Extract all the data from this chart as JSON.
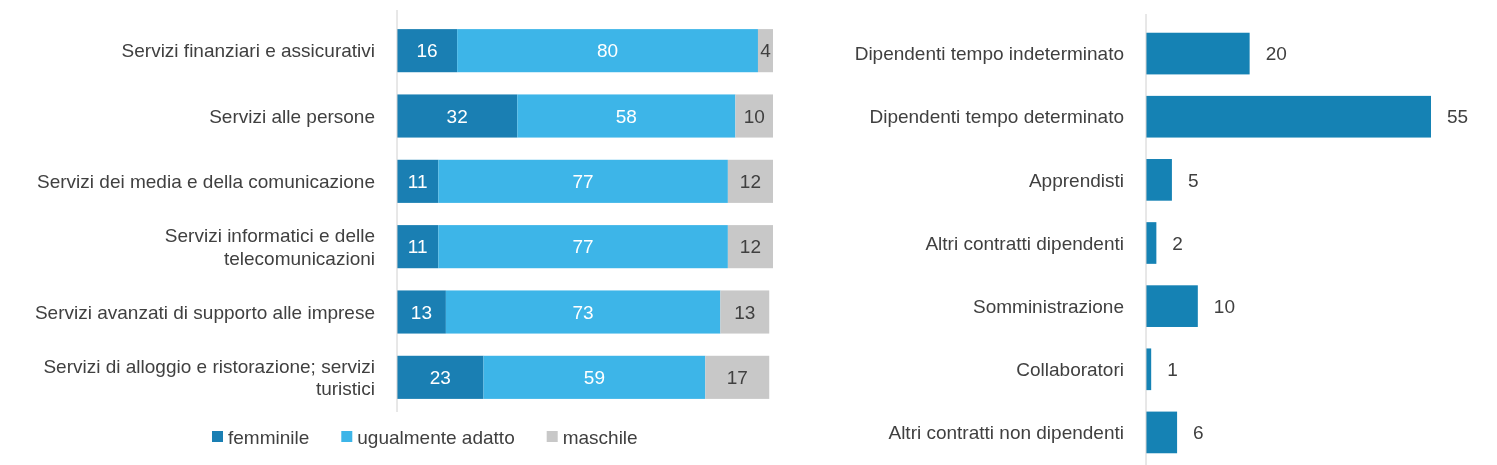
{
  "chart_data": [
    {
      "type": "bar",
      "orientation": "horizontal",
      "stacked": true,
      "data_labels": true,
      "legend": "bottom",
      "categories": [
        "Servizi finanziari e assicurativi",
        "Servizi alle persone",
        "Servizi dei media e della comunicazione",
        "Servizi informatici e delle telecomunicazioni",
        "Servizi avanzati di supporto alle imprese",
        "Servizi di alloggio e ristorazione; servizi turistici"
      ],
      "series": [
        {
          "name": "femminile",
          "color": "#1a7fb3",
          "values": [
            16,
            32,
            11,
            11,
            13,
            23
          ]
        },
        {
          "name": "ugualmente adatto",
          "color": "#3db5e8",
          "values": [
            80,
            58,
            77,
            77,
            73,
            59
          ]
        },
        {
          "name": "maschile",
          "color": "#c8c8c8",
          "values": [
            4,
            10,
            12,
            12,
            13,
            17
          ]
        }
      ]
    },
    {
      "type": "bar",
      "orientation": "horizontal",
      "data_labels": true,
      "categories": [
        "Dipendenti tempo indeterminato",
        "Dipendenti tempo determinato",
        "Apprendisti",
        "Altri contratti dipendenti",
        "Somministrazione",
        "Collaboratori",
        "Altri contratti non dipendenti"
      ],
      "series": [
        {
          "color": "#1582b4",
          "values": [
            20,
            55,
            5,
            2,
            10,
            1,
            6
          ]
        }
      ]
    }
  ]
}
